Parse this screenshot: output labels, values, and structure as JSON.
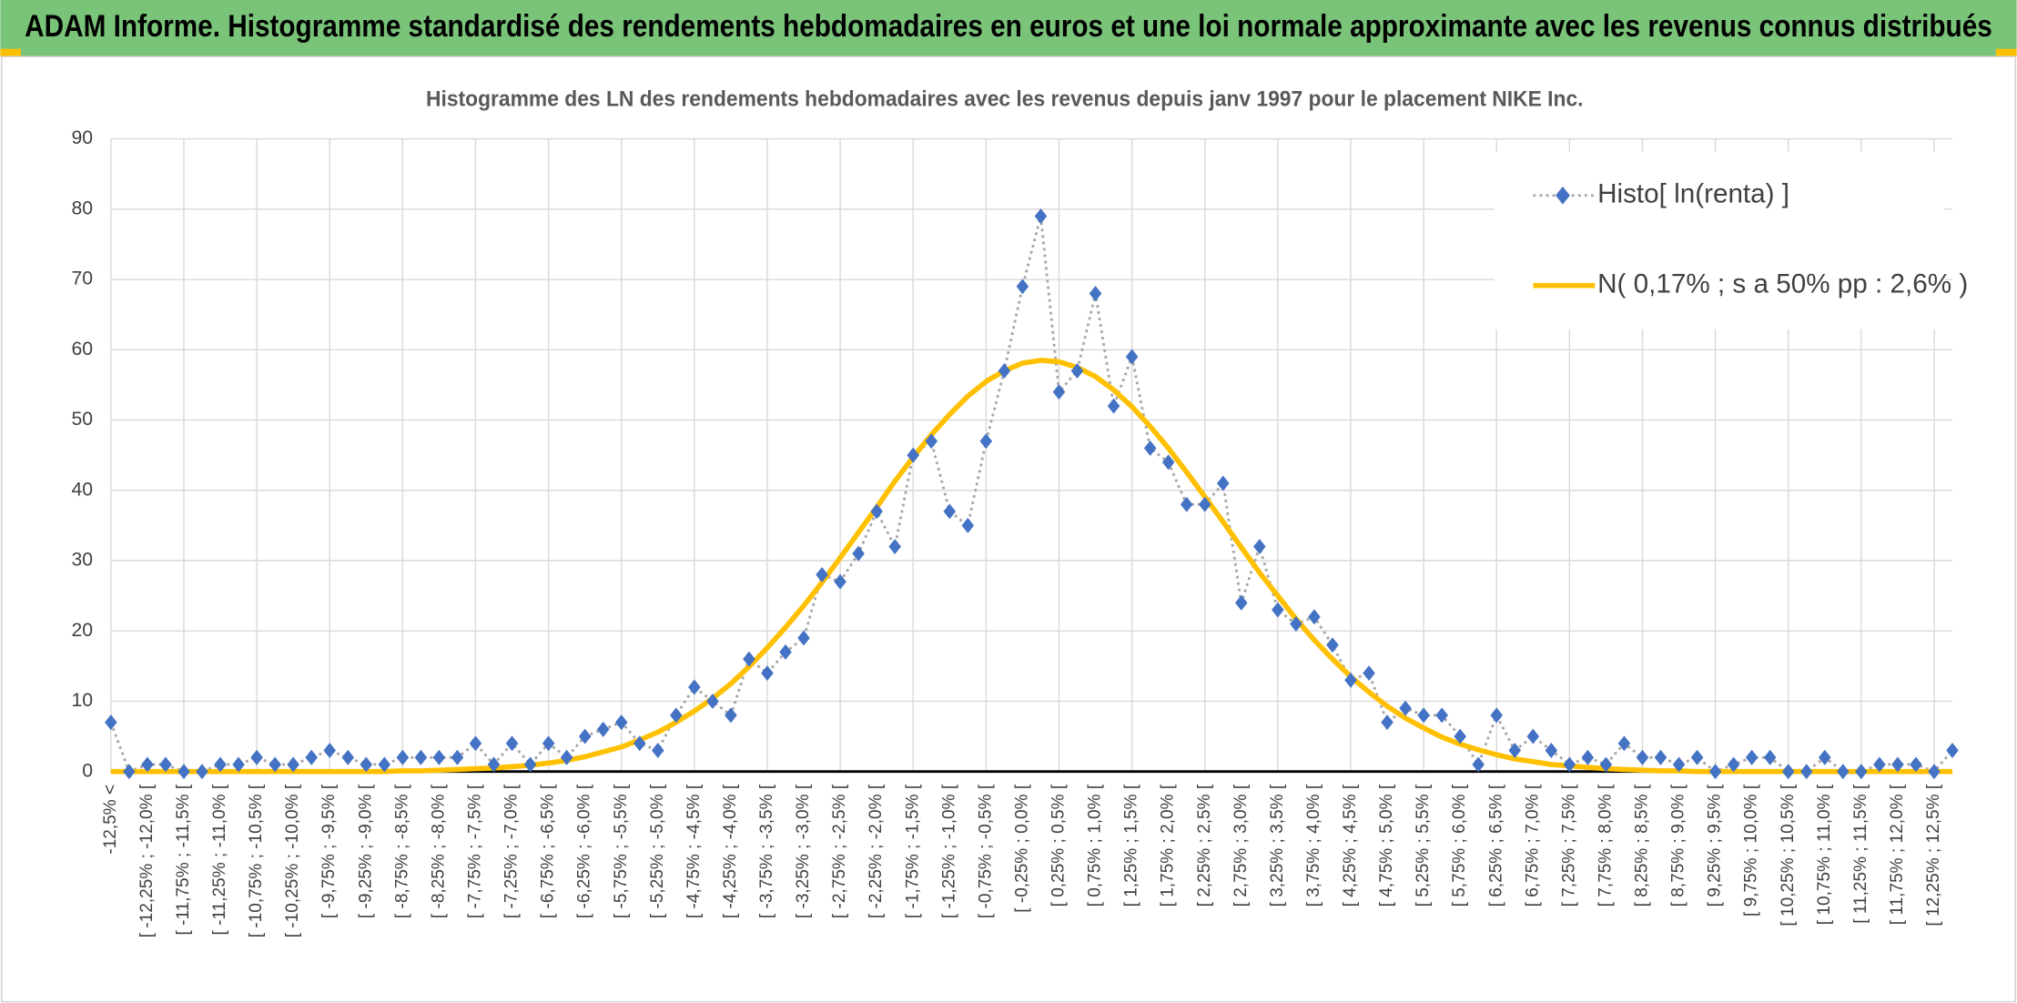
{
  "chart_data": {
    "type": "line",
    "title": "ADAM Informe. Histogramme standardisé des rendements hebdomadaires en euros et une loi normale approximante avec les revenus connus distribués",
    "subtitle": "Histogramme des LN des rendements hebdomadaires avec les revenus depuis janv 1997 pour le placement NIKE Inc.",
    "categories": [
      "-12,5% <",
      null,
      "[ -12,25% ; -12,0% [",
      null,
      "[ -11,75% ; -11,5% [",
      null,
      "[ -11,25% ; -11,0% [",
      null,
      "[ -10,75% ; -10,5% [",
      null,
      "[ -10,25% ; -10,0% [",
      null,
      "[ -9,75% ; -9,5% [",
      null,
      "[ -9,25% ; -9,0% [",
      null,
      "[ -8,75% ; -8,5% [",
      null,
      "[ -8,25% ; -8,0% [",
      null,
      "[ -7,75% ; -7,5% [",
      null,
      "[ -7,25% ; -7,0% [",
      null,
      "[ -6,75% ; -6,5% [",
      null,
      "[ -6,25% ; -6,0% [",
      null,
      "[ -5,75% ; -5,5% [",
      null,
      "[ -5,25% ; -5,0% [",
      null,
      "[ -4,75% ; -4,5% [",
      null,
      "[ -4,25% ; -4,0% [",
      null,
      "[ -3,75% ; -3,5% [",
      null,
      "[ -3,25% ; -3,0% [",
      null,
      "[ -2,75% ; -2,5% [",
      null,
      "[ -2,25% ; -2,0% [",
      null,
      "[ -1,75% ; -1,5% [",
      null,
      "[ -1,25% ; -1,0% [",
      null,
      "[ -0,75% ; -0,5% [",
      null,
      "[ -0,25% ; 0,0% [",
      null,
      "[ 0,25% ; 0,5% [",
      null,
      "[ 0,75% ; 1,0% [",
      null,
      "[ 1,25% ; 1,5% [",
      null,
      "[ 1,75% ; 2,0% [",
      null,
      "[ 2,25% ; 2,5% [",
      null,
      "[ 2,75% ; 3,0% [",
      null,
      "[ 3,25% ; 3,5% [",
      null,
      "[ 3,75% ; 4,0% [",
      null,
      "[ 4,25% ; 4,5% [",
      null,
      "[ 4,75% ; 5,0% [",
      null,
      "[ 5,25% ; 5,5% [",
      null,
      "[ 5,75% ; 6,0% [",
      null,
      "[ 6,25% ; 6,5% [",
      null,
      "[ 6,75% ; 7,0% [",
      null,
      "[ 7,25% ; 7,5% [",
      null,
      "[ 7,75% ; 8,0% [",
      null,
      "[ 8,25% ; 8,5% [",
      null,
      "[ 8,75% ; 9,0% [",
      null,
      "[ 9,25% ; 9,5% [",
      null,
      "[ 9,75% ; 10,0% [",
      null,
      "[ 10,25% ; 10,5% [",
      null,
      "[ 10,75% ; 11,0% [",
      null,
      "[ 11,25% ; 11,5% [",
      null,
      "[ 11,75% ; 12,0% [",
      null,
      "[ 12,25% ; 12,5% [",
      null
    ],
    "series": [
      {
        "name": "Histo[ ln(renta) ]",
        "color": "#4472c4",
        "line_color": "#a5a5a5",
        "values": [
          7,
          0,
          1,
          1,
          0,
          0,
          1,
          1,
          2,
          1,
          1,
          2,
          3,
          2,
          1,
          1,
          2,
          2,
          2,
          2,
          4,
          1,
          4,
          1,
          4,
          2,
          5,
          6,
          7,
          4,
          3,
          8,
          12,
          10,
          8,
          16,
          14,
          17,
          19,
          28,
          27,
          31,
          37,
          32,
          45,
          47,
          37,
          35,
          47,
          57,
          69,
          79,
          54,
          57,
          68,
          52,
          59,
          46,
          44,
          38,
          38,
          41,
          24,
          32,
          23,
          21,
          22,
          18,
          13,
          14,
          7,
          9,
          8,
          8,
          5,
          1,
          8,
          3,
          5,
          3,
          1,
          2,
          1,
          4,
          2,
          2,
          1,
          2,
          0,
          1,
          2,
          2,
          0,
          0,
          2,
          0,
          0,
          1,
          1,
          1,
          0,
          3
        ]
      },
      {
        "name": "N( 0,17% ; s a 50% pp : 2,6% )",
        "color": "#ffc000",
        "values": [
          0,
          0,
          0,
          0,
          0,
          0,
          0,
          0,
          0,
          0,
          0,
          0,
          0,
          0,
          0,
          0,
          0.1,
          0.1,
          0.2,
          0.3,
          0.4,
          0.5,
          0.7,
          0.9,
          1.2,
          1.6,
          2.1,
          2.8,
          3.5,
          4.5,
          5.6,
          7.0,
          8.6,
          10.4,
          12.5,
          14.9,
          17.6,
          20.5,
          23.6,
          26.9,
          30.4,
          34.0,
          37.6,
          41.3,
          44.7,
          47.9,
          50.8,
          53.4,
          55.5,
          57.0,
          58.1,
          58.5,
          58.3,
          57.5,
          56.2,
          54.3,
          51.9,
          49.1,
          46.0,
          42.6,
          39.1,
          35.5,
          31.9,
          28.3,
          25.0,
          21.7,
          18.7,
          16.0,
          13.5,
          11.3,
          9.3,
          7.6,
          6.2,
          4.9,
          3.9,
          3.1,
          2.4,
          1.8,
          1.4,
          1.0,
          0.8,
          0.6,
          0.4,
          0.3,
          0.2,
          0.1,
          0.1,
          0,
          0,
          0,
          0,
          0,
          0,
          0,
          0,
          0,
          0,
          0,
          0,
          0,
          0,
          0
        ]
      }
    ],
    "ylim": [
      0,
      90
    ],
    "yticks": [
      0,
      10,
      20,
      30,
      40,
      50,
      60,
      70,
      80,
      90
    ],
    "grid": true,
    "legend": "top-right"
  }
}
